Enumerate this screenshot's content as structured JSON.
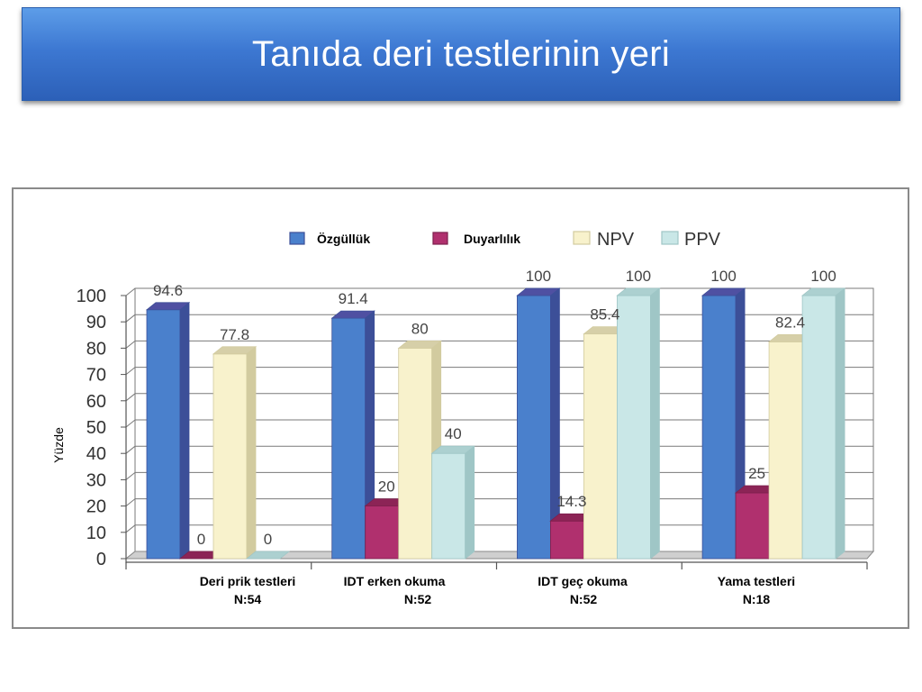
{
  "slide": {
    "title": "Tanıda deri testlerinin yeri"
  },
  "colors": {
    "title_banner_top": "#5d9de8",
    "title_banner_mid": "#3d78d2",
    "title_banner_bottom": "#2c60b8",
    "title_text": "#ffffff",
    "gridline": "#7a7a7a",
    "axis_text": "#333333"
  },
  "chart_data": {
    "type": "bar",
    "three_d": true,
    "ylabel": "Yüzde",
    "ylim": [
      0,
      100
    ],
    "yticks": [
      0,
      10,
      20,
      30,
      40,
      50,
      60,
      70,
      80,
      90,
      100
    ],
    "grid": true,
    "legend_position": "top",
    "categories": [
      {
        "label": "Deri prik testleri",
        "n": "N:54"
      },
      {
        "label": "IDT erken okuma",
        "n": "N:52"
      },
      {
        "label": "IDT geç okuma",
        "n": "N:52"
      },
      {
        "label": "Yama testleri",
        "n": "N:18"
      }
    ],
    "series": [
      {
        "name": "Özgüllük",
        "values": [
          94.6,
          91.4,
          100,
          100
        ],
        "color": "#4a80cc",
        "side_color": "#3c4f98",
        "top_color": "#4f50a2"
      },
      {
        "name": "Duyarlılık",
        "values": [
          0,
          20,
          14.3,
          25
        ],
        "color": "#b0306e",
        "side_color": "#7d1f4c",
        "top_color": "#8c2456"
      },
      {
        "name": "NPV",
        "values": [
          77.8,
          80,
          85.4,
          82.4
        ],
        "color": "#f8f2cc",
        "side_color": "#d2cb9f",
        "top_color": "#d6cfa8"
      },
      {
        "name": "PPV",
        "values": [
          0,
          40,
          100,
          100
        ],
        "color": "#c9e7e7",
        "side_color": "#9fc6c6",
        "top_color": "#acd0d0"
      }
    ]
  }
}
